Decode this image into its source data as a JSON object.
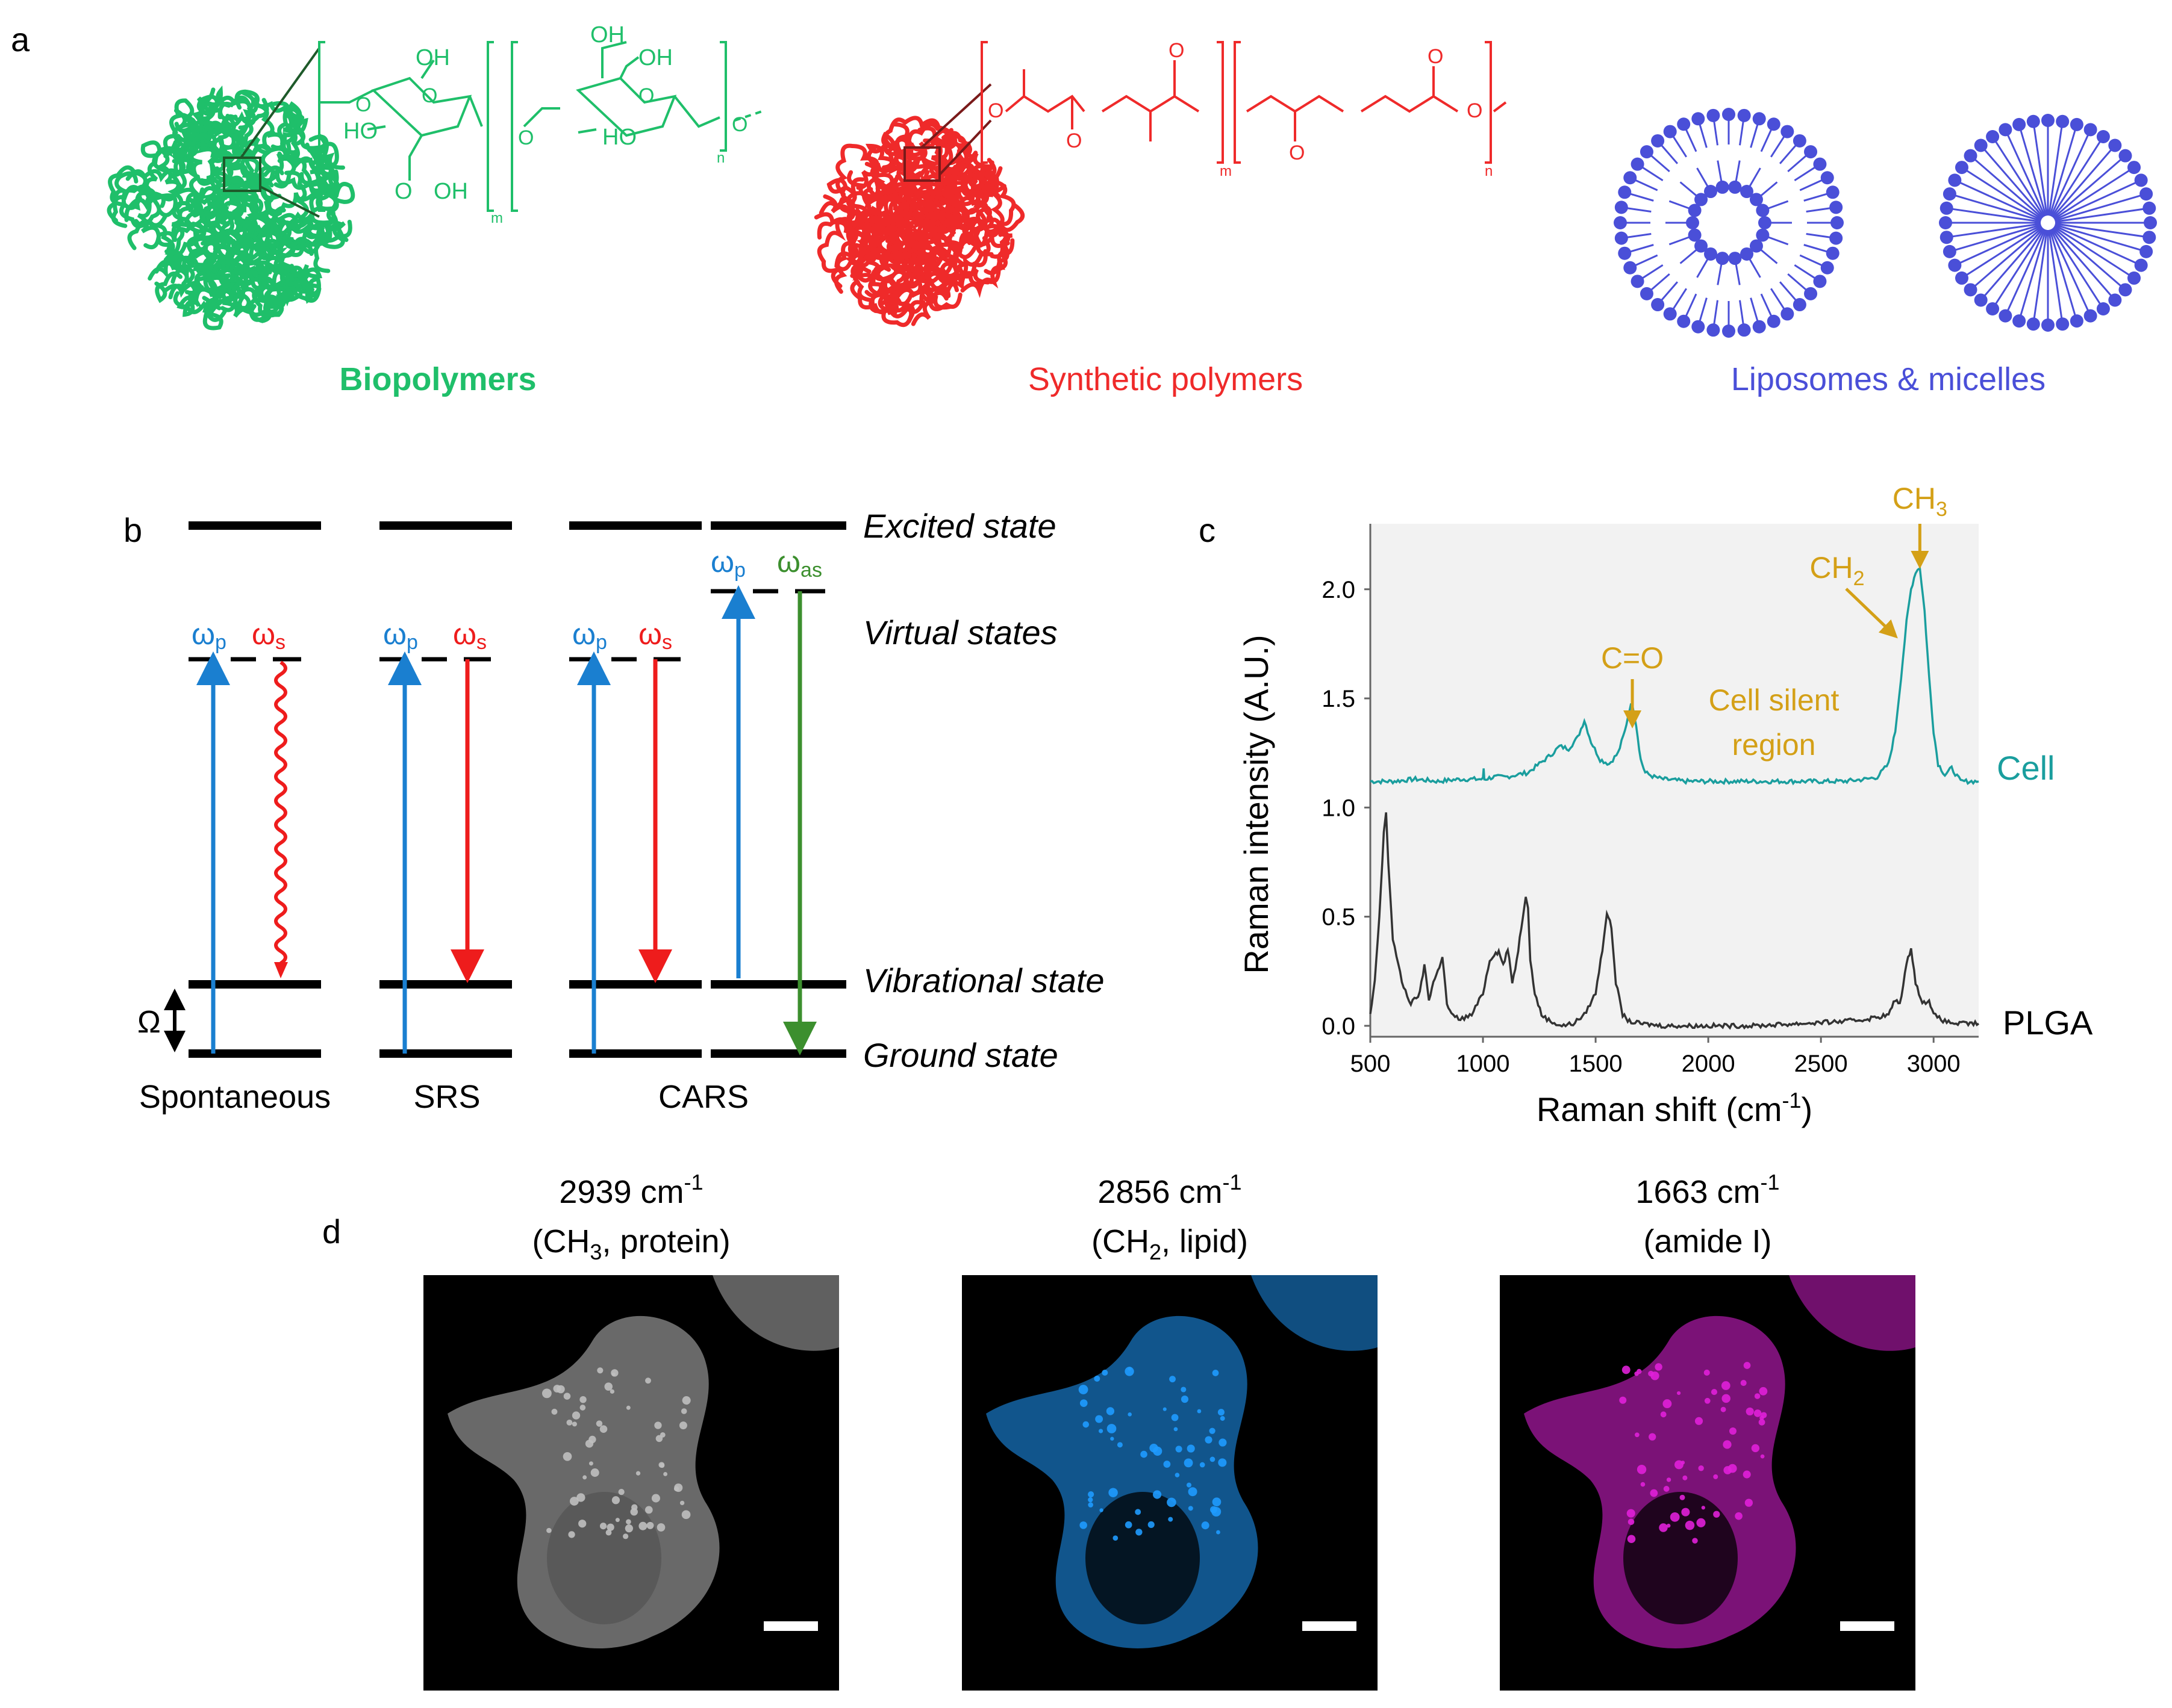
{
  "panels": {
    "a": {
      "label": "a",
      "biopolymers": "Biopolymers",
      "synthetic": "Synthetic polymers",
      "liposomes": "Liposomes & micelles",
      "chem_bio": {
        "oh1": "OH",
        "oh2": "OH",
        "ho1": "HO",
        "o_ring1": "O",
        "o_link1": "O",
        "o_link2": "O",
        "oh3": "OH",
        "ho2": "HO",
        "o_ring2": "O",
        "o_end": "O",
        "oh_carboxyl": "OH",
        "m": "m",
        "n": "n",
        "o_carb1": "O",
        "ooh_top": "OH"
      },
      "chem_syn": {
        "o1": "O",
        "o2": "O",
        "o3": "O",
        "o4": "O",
        "o5": "O",
        "o6": "O",
        "m": "m",
        "n": "n"
      },
      "colors": {
        "bio": "#1fbf6a",
        "syn": "#ef2a2a",
        "lipo": "#4a4fd8"
      }
    },
    "b": {
      "label": "b",
      "levels": {
        "excited": "Excited state",
        "virtual": "Virtual states",
        "vibrational": "Vibrational state",
        "ground": "Ground state"
      },
      "omega": "Ω",
      "wp": "ω",
      "wp_sub": "p",
      "ws": "ω",
      "ws_sub": "s",
      "was": "ω",
      "was_sub": "as",
      "methods": [
        "Spontaneous",
        "SRS",
        "CARS"
      ],
      "colors": {
        "pump": "#1a7fd0",
        "stokes": "#ee1c1c",
        "antistokes": "#3c8f2e"
      }
    },
    "c": {
      "label": "c",
      "chart_data": {
        "type": "line",
        "xlabel": "Raman shift (cm",
        "xlabel_sup": "-1",
        "xlabel_end": ")",
        "ylabel": "Raman intensity (A.U.)",
        "xlim": [
          500,
          3200
        ],
        "ylim": [
          -0.05,
          2.3
        ],
        "xticks": [
          "500",
          "1000",
          "1500",
          "2000",
          "2500",
          "3000"
        ],
        "yticks": [
          "0.0",
          "0.5",
          "1.0",
          "1.5",
          "2.0"
        ],
        "series": [
          {
            "name": "Cell",
            "color": "#1a9e9e",
            "x": [
              500,
              600,
              700,
              800,
              900,
              1000,
              1003,
              1006,
              1050,
              1100,
              1150,
              1200,
              1250,
              1300,
              1340,
              1380,
              1420,
              1450,
              1480,
              1520,
              1560,
              1600,
              1630,
              1650,
              1663,
              1680,
              1700,
              1720,
              1760,
              1800,
              1900,
              2000,
              2100,
              2200,
              2300,
              2400,
              2500,
              2600,
              2700,
              2750,
              2800,
              2830,
              2856,
              2880,
              2900,
              2920,
              2939,
              2960,
              2980,
              3000,
              3020,
              3050,
              3080,
              3120,
              3200
            ],
            "y": [
              1.12,
              1.12,
              1.13,
              1.12,
              1.13,
              1.13,
              1.18,
              1.13,
              1.14,
              1.14,
              1.15,
              1.16,
              1.2,
              1.24,
              1.28,
              1.27,
              1.32,
              1.4,
              1.3,
              1.22,
              1.2,
              1.25,
              1.35,
              1.45,
              1.48,
              1.38,
              1.22,
              1.16,
              1.14,
              1.13,
              1.12,
              1.12,
              1.12,
              1.12,
              1.12,
              1.12,
              1.12,
              1.12,
              1.13,
              1.14,
              1.2,
              1.35,
              1.6,
              1.85,
              2.0,
              2.08,
              2.1,
              1.9,
              1.6,
              1.35,
              1.2,
              1.15,
              1.18,
              1.12,
              1.12
            ]
          },
          {
            "name": "PLGA",
            "color": "#333333",
            "x": [
              500,
              520,
              540,
              560,
              570,
              580,
              600,
              640,
              680,
              720,
              740,
              760,
              780,
              800,
              820,
              840,
              860,
              900,
              950,
              1000,
              1030,
              1050,
              1070,
              1090,
              1110,
              1130,
              1150,
              1170,
              1190,
              1200,
              1210,
              1230,
              1260,
              1300,
              1350,
              1400,
              1450,
              1500,
              1530,
              1550,
              1570,
              1590,
              1620,
              1650,
              1700,
              1800,
              1900,
              2000,
              2200,
              2400,
              2600,
              2700,
              2800,
              2830,
              2850,
              2880,
              2900,
              2920,
              2950,
              2980,
              3000,
              3050,
              3100,
              3200
            ],
            "y": [
              0.05,
              0.2,
              0.5,
              0.88,
              0.98,
              0.75,
              0.4,
              0.2,
              0.1,
              0.15,
              0.28,
              0.12,
              0.2,
              0.25,
              0.32,
              0.1,
              0.05,
              0.03,
              0.05,
              0.15,
              0.3,
              0.33,
              0.34,
              0.28,
              0.35,
              0.2,
              0.3,
              0.45,
              0.6,
              0.55,
              0.3,
              0.15,
              0.05,
              0.02,
              0.0,
              0.01,
              0.05,
              0.15,
              0.35,
              0.52,
              0.45,
              0.2,
              0.05,
              0.02,
              0.01,
              0.0,
              0.0,
              0.0,
              0.0,
              0.01,
              0.02,
              0.03,
              0.05,
              0.12,
              0.1,
              0.28,
              0.36,
              0.2,
              0.1,
              0.12,
              0.05,
              0.02,
              0.01,
              0.01
            ]
          }
        ],
        "annotations": {
          "co": "C=O",
          "silent1": "Cell silent",
          "silent2": "region",
          "ch2": "CH",
          "ch2_sub": "2",
          "ch3": "CH",
          "ch3_sub": "3"
        },
        "annotation_color": "#d4a017"
      }
    },
    "d": {
      "label": "d",
      "images": [
        {
          "title1": "2939 cm",
          "title1_sup": "-1",
          "title2a": "(CH",
          "title2_sub": "3",
          "title2b": ", protein)",
          "color": "#bfbfbf"
        },
        {
          "title1": "2856 cm",
          "title1_sup": "-1",
          "title2a": "(CH",
          "title2_sub": "2",
          "title2b": ", lipid)",
          "color": "#1f9bff"
        },
        {
          "title1": "1663 cm",
          "title1_sup": "-1",
          "title2a": "(amide I)",
          "title2_sub": "",
          "title2b": "",
          "color": "#e020d8"
        }
      ]
    }
  }
}
